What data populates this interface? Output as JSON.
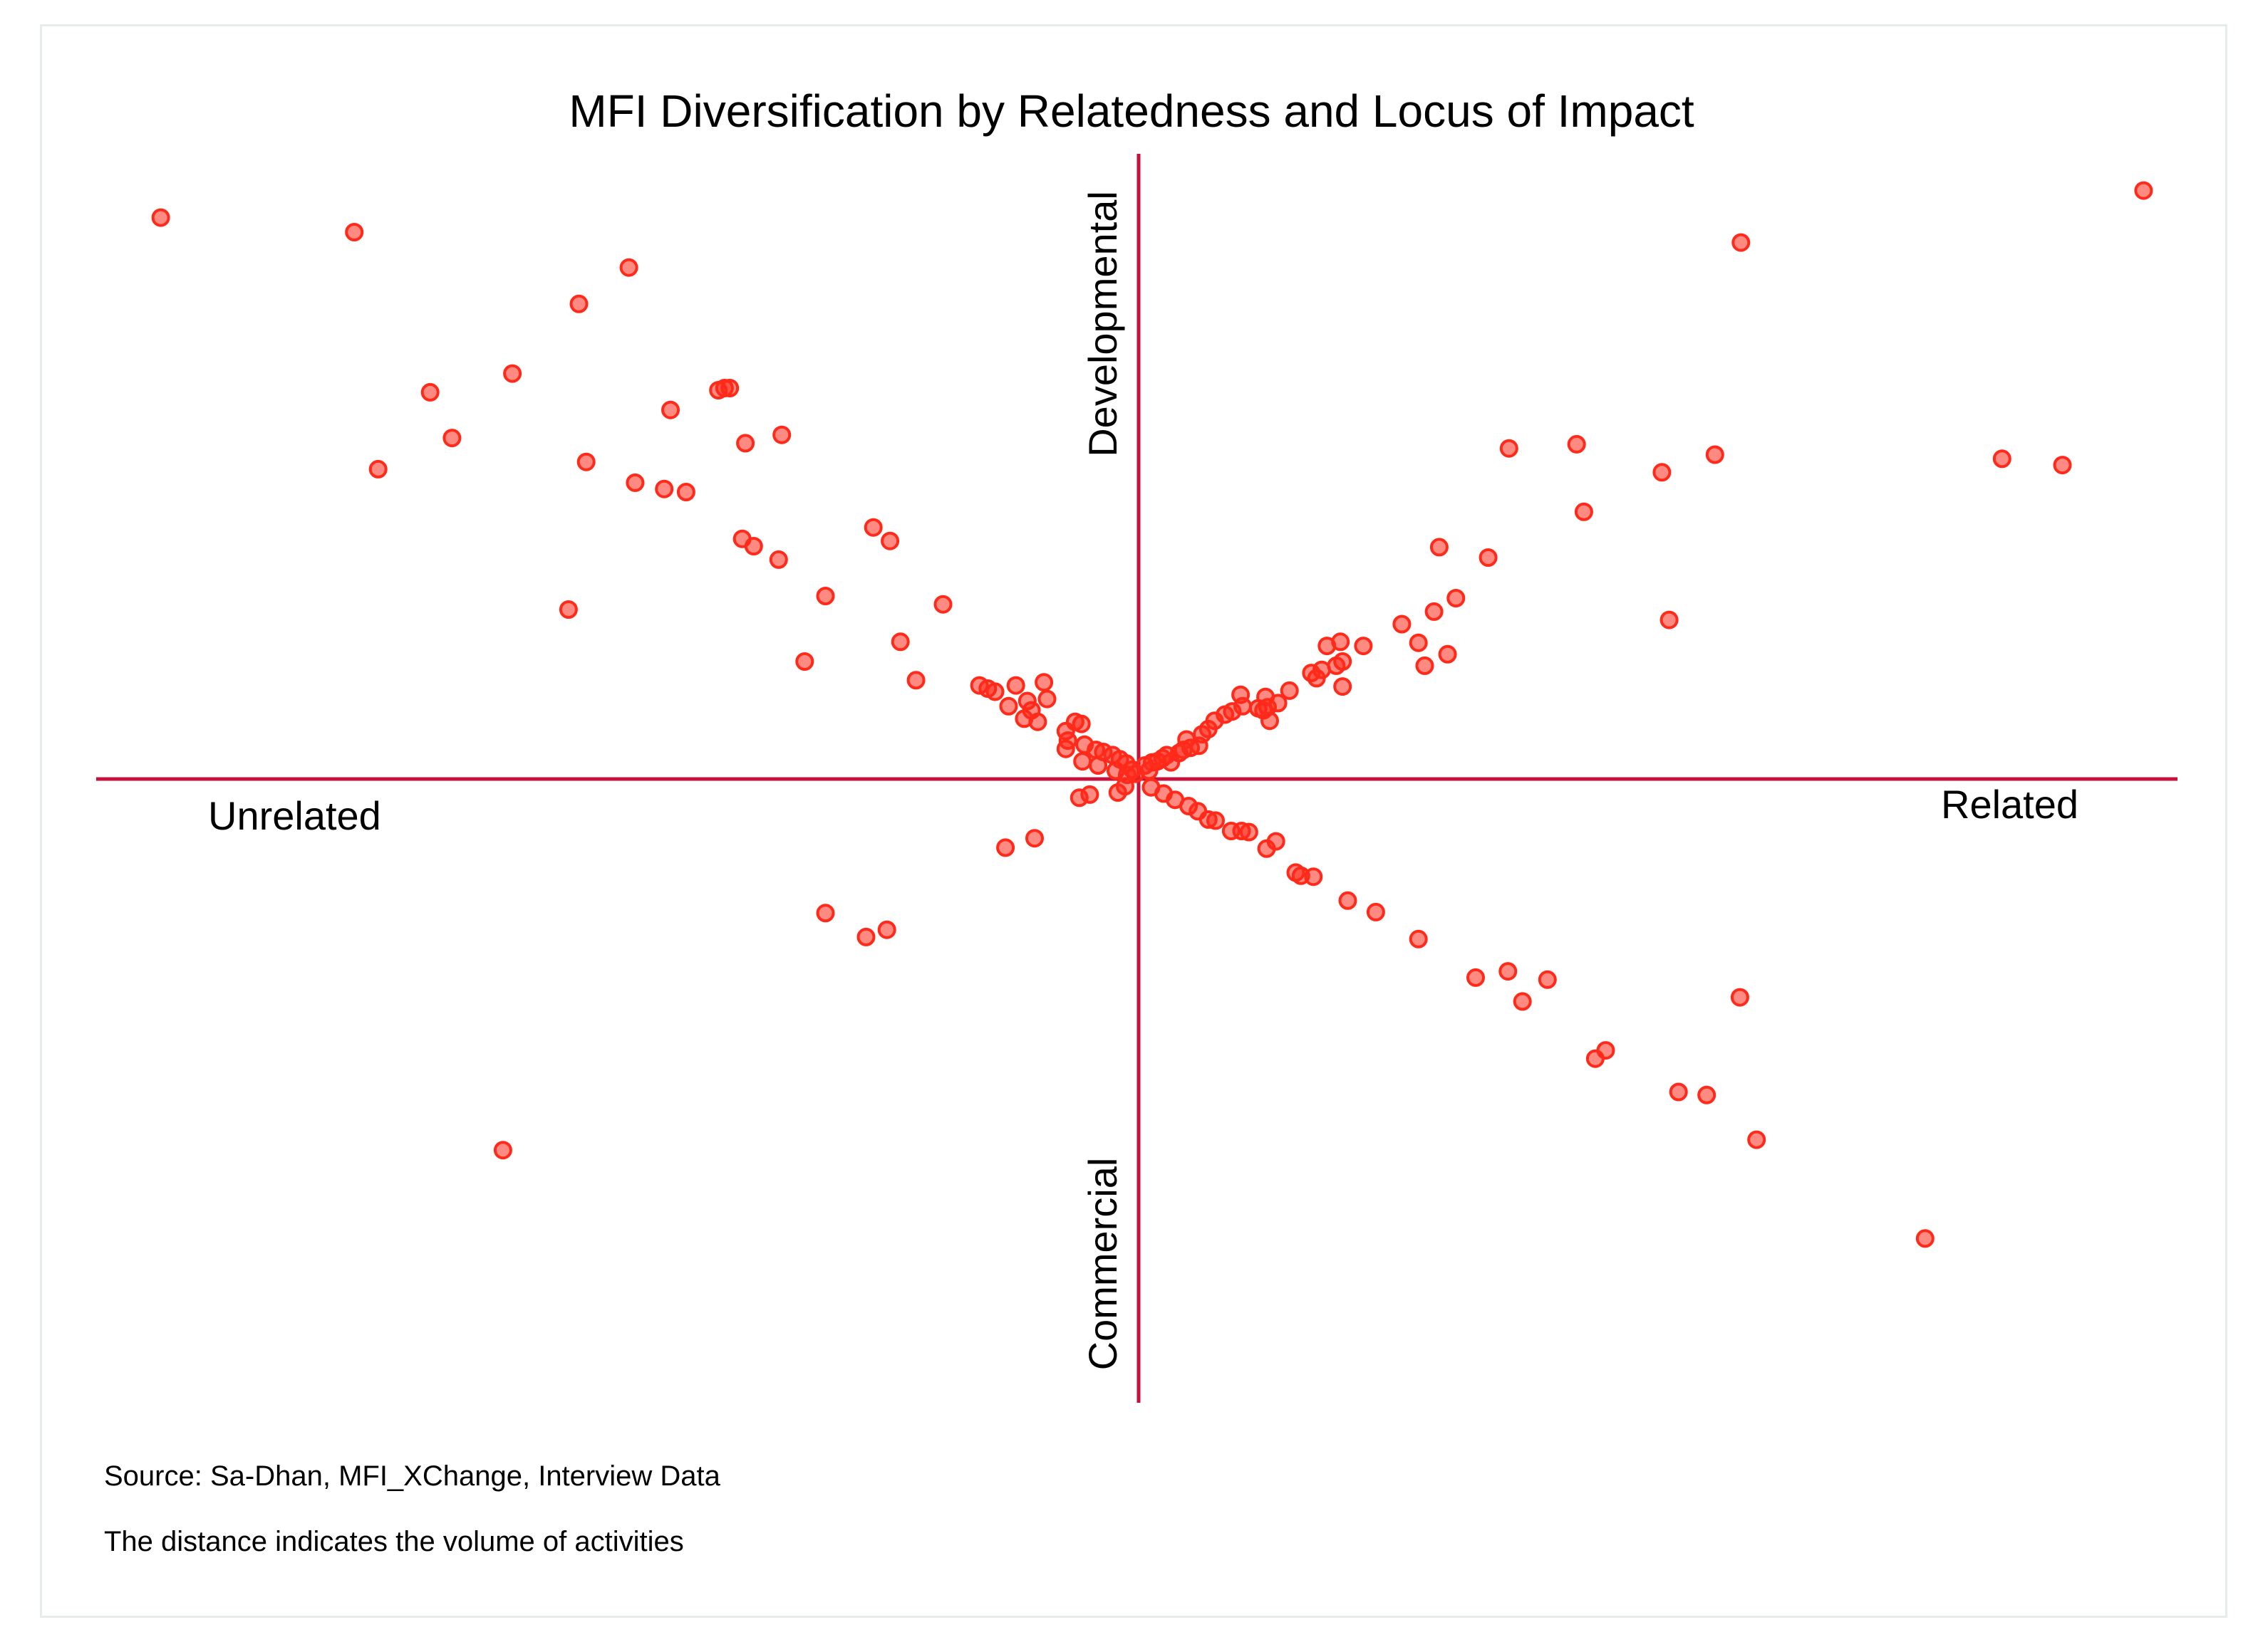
{
  "chart_data": {
    "type": "scatter",
    "title": "MFI Diversification by Relatedness and Locus of Impact",
    "axis_labels": {
      "x_positive": "Related",
      "x_negative": "Unrelated",
      "y_positive": "Developmental",
      "y_negative": "Commercial"
    },
    "xlim": [
      -100,
      100
    ],
    "ylim": [
      -60,
      60
    ],
    "grid": false,
    "marker_color": "#ff2a1a",
    "axis_color": "#c4123c",
    "notes": [
      "Source: Sa-Dhan, MFI_XChange, Interview  Data",
      "The distance indicates the volume of activities"
    ],
    "points": [
      [
        -94.0,
        54.0
      ],
      [
        -75.4,
        52.6
      ],
      [
        -49.0,
        49.2
      ],
      [
        -53.8,
        45.7
      ],
      [
        -68.1,
        37.2
      ],
      [
        -60.2,
        39.0
      ],
      [
        -73.1,
        29.8
      ],
      [
        -66.0,
        32.8
      ],
      [
        -40.4,
        37.4
      ],
      [
        -39.8,
        37.6
      ],
      [
        -39.3,
        37.6
      ],
      [
        -45.0,
        35.5
      ],
      [
        -37.8,
        32.3
      ],
      [
        -34.3,
        33.1
      ],
      [
        -53.1,
        30.5
      ],
      [
        -48.4,
        28.5
      ],
      [
        -45.6,
        27.9
      ],
      [
        -43.5,
        27.6
      ],
      [
        -38.1,
        23.1
      ],
      [
        -37.0,
        22.4
      ],
      [
        -34.6,
        21.1
      ],
      [
        -25.5,
        24.2
      ],
      [
        -23.9,
        22.9
      ],
      [
        -30.1,
        17.6
      ],
      [
        -18.8,
        16.8
      ],
      [
        -54.8,
        16.3
      ],
      [
        -22.9,
        13.2
      ],
      [
        -32.1,
        11.3
      ],
      [
        -21.4,
        9.5
      ],
      [
        -15.3,
        9.0
      ],
      [
        -14.5,
        8.7
      ],
      [
        -13.8,
        8.4
      ],
      [
        -11.8,
        9.0
      ],
      [
        -9.1,
        9.3
      ],
      [
        -8.8,
        7.7
      ],
      [
        -10.7,
        7.5
      ],
      [
        -12.5,
        7.0
      ],
      [
        -10.3,
        6.6
      ],
      [
        -11.0,
        5.8
      ],
      [
        -9.7,
        5.5
      ],
      [
        -6.1,
        5.5
      ],
      [
        -5.5,
        5.3
      ],
      [
        -7.0,
        4.6
      ],
      [
        -6.8,
        3.7
      ],
      [
        -5.2,
        3.3
      ],
      [
        -4.1,
        2.8
      ],
      [
        -3.4,
        2.6
      ],
      [
        -2.5,
        2.3
      ],
      [
        -1.8,
        1.9
      ],
      [
        -1.2,
        1.5
      ],
      [
        -0.6,
        0.9
      ],
      [
        -0.3,
        0.5
      ],
      [
        -7.0,
        2.9
      ],
      [
        -5.4,
        1.7
      ],
      [
        -3.9,
        1.3
      ],
      [
        -2.2,
        0.8
      ],
      [
        -1.1,
        0.4
      ],
      [
        -5.7,
        -1.8
      ],
      [
        -4.7,
        -1.5
      ],
      [
        -2.0,
        -1.3
      ],
      [
        -1.3,
        -0.7
      ],
      [
        -10.0,
        -5.7
      ],
      [
        -12.8,
        -6.6
      ],
      [
        -30.1,
        -12.9
      ],
      [
        -26.2,
        -15.2
      ],
      [
        -24.2,
        -14.5
      ],
      [
        -61.1,
        -35.7
      ],
      [
        0.6,
        1.3
      ],
      [
        1.0,
        0.8
      ],
      [
        1.3,
        1.6
      ],
      [
        1.8,
        1.7
      ],
      [
        2.3,
        2.0
      ],
      [
        3.1,
        1.6
      ],
      [
        2.7,
        2.3
      ],
      [
        3.9,
        2.5
      ],
      [
        4.3,
        2.8
      ],
      [
        5.0,
        3.0
      ],
      [
        5.8,
        3.2
      ],
      [
        4.6,
        3.8
      ],
      [
        6.1,
        4.3
      ],
      [
        6.7,
        4.8
      ],
      [
        7.3,
        5.6
      ],
      [
        8.3,
        6.2
      ],
      [
        9.0,
        6.5
      ],
      [
        10.0,
        7.0
      ],
      [
        11.5,
        6.8
      ],
      [
        12.0,
        6.6
      ],
      [
        12.4,
        6.9
      ],
      [
        12.6,
        5.6
      ],
      [
        9.8,
        8.1
      ],
      [
        12.2,
        7.9
      ],
      [
        13.4,
        7.3
      ],
      [
        14.5,
        8.5
      ],
      [
        17.1,
        9.7
      ],
      [
        16.6,
        10.2
      ],
      [
        17.6,
        10.5
      ],
      [
        19.0,
        10.9
      ],
      [
        19.6,
        8.9
      ],
      [
        19.6,
        11.3
      ],
      [
        19.4,
        13.2
      ],
      [
        18.1,
        12.8
      ],
      [
        21.6,
        12.8
      ],
      [
        27.5,
        10.9
      ],
      [
        26.9,
        13.1
      ],
      [
        29.7,
        12.0
      ],
      [
        25.3,
        14.9
      ],
      [
        28.4,
        16.1
      ],
      [
        30.5,
        17.4
      ],
      [
        33.6,
        21.3
      ],
      [
        35.6,
        31.8
      ],
      [
        28.9,
        22.3
      ],
      [
        42.1,
        32.2
      ],
      [
        42.8,
        25.7
      ],
      [
        50.3,
        29.5
      ],
      [
        51.0,
        15.3
      ],
      [
        55.4,
        31.2
      ],
      [
        57.9,
        51.6
      ],
      [
        83.0,
        30.8
      ],
      [
        88.8,
        30.2
      ],
      [
        96.6,
        56.6
      ],
      [
        1.2,
        -0.8
      ],
      [
        2.4,
        -1.4
      ],
      [
        3.5,
        -2.0
      ],
      [
        4.8,
        -2.6
      ],
      [
        5.7,
        -3.1
      ],
      [
        6.7,
        -3.9
      ],
      [
        7.4,
        -4.0
      ],
      [
        8.9,
        -5.0
      ],
      [
        9.9,
        -5.0
      ],
      [
        10.6,
        -5.1
      ],
      [
        12.3,
        -6.7
      ],
      [
        13.2,
        -6.0
      ],
      [
        15.1,
        -9.0
      ],
      [
        15.6,
        -9.3
      ],
      [
        16.8,
        -9.4
      ],
      [
        20.1,
        -11.7
      ],
      [
        22.8,
        -12.8
      ],
      [
        26.9,
        -15.4
      ],
      [
        32.4,
        -19.1
      ],
      [
        35.5,
        -18.5
      ],
      [
        36.9,
        -21.4
      ],
      [
        39.3,
        -19.3
      ],
      [
        43.9,
        -26.9
      ],
      [
        44.9,
        -26.1
      ],
      [
        51.9,
        -30.1
      ],
      [
        54.6,
        -30.4
      ],
      [
        57.8,
        -21.0
      ],
      [
        59.4,
        -34.7
      ],
      [
        75.6,
        -44.2
      ]
    ]
  }
}
